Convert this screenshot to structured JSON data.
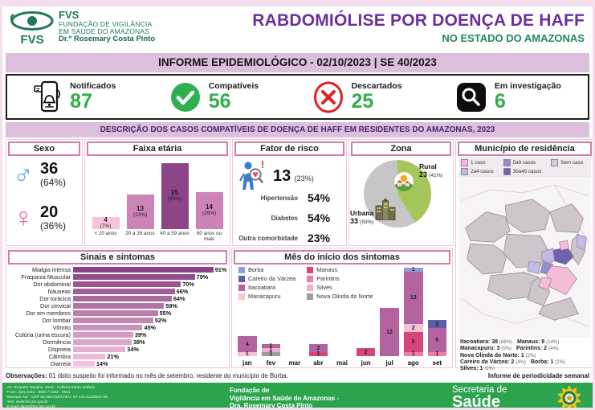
{
  "header": {
    "logo_abbr": "FVS",
    "logo_org_line1": "FUNDAÇÃO DE VIGILÂNCIA",
    "logo_org_line2": "EM SAÚDE DO AMAZONAS",
    "logo_director": "Dr.ª Rosemary Costa Pinto",
    "title": "RABDOMIÓLISE POR DOENÇA DE HAFF",
    "subtitle": "NO ESTADO DO AMAZONAS",
    "bulletin_band": "INFORME EPIDEMIOLÓGICO - 02/10/2023 | SE 40/2023"
  },
  "stats": [
    {
      "label": "Notificados",
      "value": "87",
      "icon": "phone-notification-icon"
    },
    {
      "label": "Compatíveis",
      "value": "56",
      "icon": "check-icon"
    },
    {
      "label": "Descartados",
      "value": "25",
      "icon": "x-icon"
    },
    {
      "label": "Em investigação",
      "value": "6",
      "icon": "magnifier-icon"
    }
  ],
  "section_band": "DESCRIÇÃO DOS CASOS COMPATÍVEIS DE DOENÇA DE HAFF EM RESIDENTES DO AMAZONAS, 2023",
  "panels": {
    "sexo": {
      "title": "Sexo",
      "male": {
        "value": "36",
        "pct": "(64%)"
      },
      "female": {
        "value": "20",
        "pct": "(36%)"
      }
    },
    "faixa_etaria": {
      "title": "Faixa etária"
    },
    "fator_risco": {
      "title": "Fator de risco",
      "headline_value": "13",
      "headline_pct": "(23%)",
      "rows": [
        {
          "label": "Hipertensão",
          "value": "54%"
        },
        {
          "label": "Diabetes",
          "value": "54%"
        },
        {
          "label": "Outra comorbidade",
          "value": "23%"
        }
      ]
    },
    "zona": {
      "title": "Zona"
    },
    "municipio": {
      "title": "Município de residência",
      "legend": [
        {
          "label": "1 caso",
          "color": "#f4bcd9"
        },
        {
          "label": "2a4 casos",
          "color": "#c0bbe6"
        },
        {
          "label": "5a9 casos",
          "color": "#8f8cd2"
        },
        {
          "label": "30a49 casos",
          "color": "#6f61ad"
        },
        {
          "label": "Sem caso",
          "color": "#d8d0d4"
        }
      ],
      "cases": [
        {
          "name": "Itacoatiara",
          "value": "38",
          "pct": "(68%)"
        },
        {
          "name": "Manaus",
          "value": "8",
          "pct": "(14%)"
        },
        {
          "name": "Manacapuru",
          "value": "3",
          "pct": "(5%)"
        },
        {
          "name": "Parintins",
          "value": "2",
          "pct": "(4%)"
        },
        {
          "name": "Nova Olinda do Norte",
          "value": "1",
          "pct": "(2%)"
        },
        {
          "name": "Careiro da Várzea",
          "value": "2",
          "pct": "(4%)"
        },
        {
          "name": "Borba",
          "value": "1",
          "pct": "(2%)"
        },
        {
          "name": "Silves",
          "value": "1",
          "pct": "(2%)"
        }
      ]
    },
    "sintomas": {
      "title": "Sinais e sintomas"
    },
    "mes": {
      "title": "Mês do início dos sintomas"
    }
  },
  "chart_data": [
    {
      "type": "bar",
      "title": "Faixa etária",
      "categories": [
        "< 20 anos",
        "20 a 39 anos",
        "40 a 59 anos",
        "60 anos ou mais"
      ],
      "values": [
        4,
        13,
        25,
        14
      ],
      "pcts": [
        "7%",
        "23%",
        "45%",
        "25%"
      ],
      "colors": [
        "#f6c3da",
        "#cc84b8",
        "#8b4588",
        "#cc84b8"
      ],
      "ylim": [
        0,
        27
      ]
    },
    {
      "type": "bar",
      "orientation": "horizontal",
      "title": "Sinais e sintomas",
      "categories": [
        "Mialgia intensa",
        "Fraqueza Muscular",
        "Dor abdominal",
        "Náuseas",
        "Dor torácica",
        "Dor cervical",
        "Dor em membros",
        "Dor lombar",
        "Vômito",
        "Colúria (urina escura)",
        "Dormência",
        "Dispneia",
        "Cãimbra",
        "Diarreia"
      ],
      "values": [
        91,
        79,
        70,
        66,
        64,
        59,
        55,
        52,
        45,
        39,
        38,
        34,
        21,
        14
      ],
      "unit": "%",
      "color_from": "#8a4186",
      "color_to": "#f6c3dc",
      "xlim": [
        0,
        100
      ]
    },
    {
      "type": "bar",
      "stacked": true,
      "title": "Mês do início dos sintomas",
      "categories": [
        "jan",
        "fev",
        "mar",
        "abr",
        "mai",
        "jun",
        "jul",
        "ago",
        "set"
      ],
      "series": [
        {
          "name": "Borba",
          "color": "#8e9ed6",
          "values": [
            0,
            0,
            0,
            0,
            0,
            0,
            0,
            1,
            0
          ]
        },
        {
          "name": "Careiro da Várzea",
          "color": "#5c5fa8",
          "values": [
            0,
            0,
            0,
            0,
            0,
            0,
            0,
            0,
            2
          ]
        },
        {
          "name": "Itacoatiara",
          "color": "#b3639f",
          "values": [
            4,
            1,
            0,
            2,
            0,
            0,
            12,
            13,
            6
          ]
        },
        {
          "name": "Manacapuru",
          "color": "#f9c2d2",
          "values": [
            1,
            0,
            0,
            0,
            0,
            0,
            0,
            2,
            0
          ]
        },
        {
          "name": "Manaus",
          "color": "#d5457b",
          "values": [
            0,
            0,
            0,
            1,
            0,
            2,
            0,
            5,
            0
          ]
        },
        {
          "name": "Parintins",
          "color": "#ee7fa4",
          "values": [
            0,
            0,
            0,
            0,
            0,
            0,
            0,
            1,
            1
          ]
        },
        {
          "name": "Silves",
          "color": "#efaed2",
          "values": [
            0,
            1,
            0,
            0,
            0,
            0,
            0,
            0,
            0
          ]
        },
        {
          "name": "Nova Olinda do Norte",
          "color": "#9f9b9e",
          "values": [
            0,
            1,
            0,
            0,
            0,
            0,
            0,
            0,
            0
          ]
        }
      ],
      "ylim": [
        0,
        22
      ],
      "legend_position": "top-left"
    },
    {
      "type": "pie",
      "title": "Zona",
      "slices": [
        {
          "label": "Rural",
          "value": 23,
          "pct": "(41%)",
          "color": "#a4c65a"
        },
        {
          "label": "Urbana",
          "value": 33,
          "pct": "(59%)",
          "color": "#c6c6c6"
        }
      ]
    }
  ],
  "observacoes": {
    "label": "Observações:",
    "text": "01 óbito suspeito foi informado no mês de setembro, residente do município de Borba.",
    "right_note": "Informe de periodicidade semanal"
  },
  "footer": {
    "address_lines": [
      "Av. Torquato Tapajós, 4010 - Colônia Santo Antônio",
      "Fone: (92) 3182 - 8550 / 3182 - 8551",
      "Manaus-AM - CEP 69.093-018/CNPJ: 07.141.411/0001-46",
      "Site: www.fvs.am.gov.br",
      "E-mail: dipre@fvs.am.gov.br"
    ],
    "center_lines": [
      "Fundação de",
      "Vigilância em Saúde do Amazonas -",
      "Dra. Rosemary Costa Pinto"
    ],
    "secretaria_line1": "Secretaria de",
    "secretaria_line2": "Saúde"
  },
  "colors": {
    "brand_green": "#1e7a55",
    "accent_purple": "#6b2f9e",
    "stat_green": "#2fae4a",
    "band_bg": "#dcbedd",
    "band_text": "#46266e",
    "footer_green": "#2ca44e",
    "panel_border": "#cf7fa9"
  }
}
